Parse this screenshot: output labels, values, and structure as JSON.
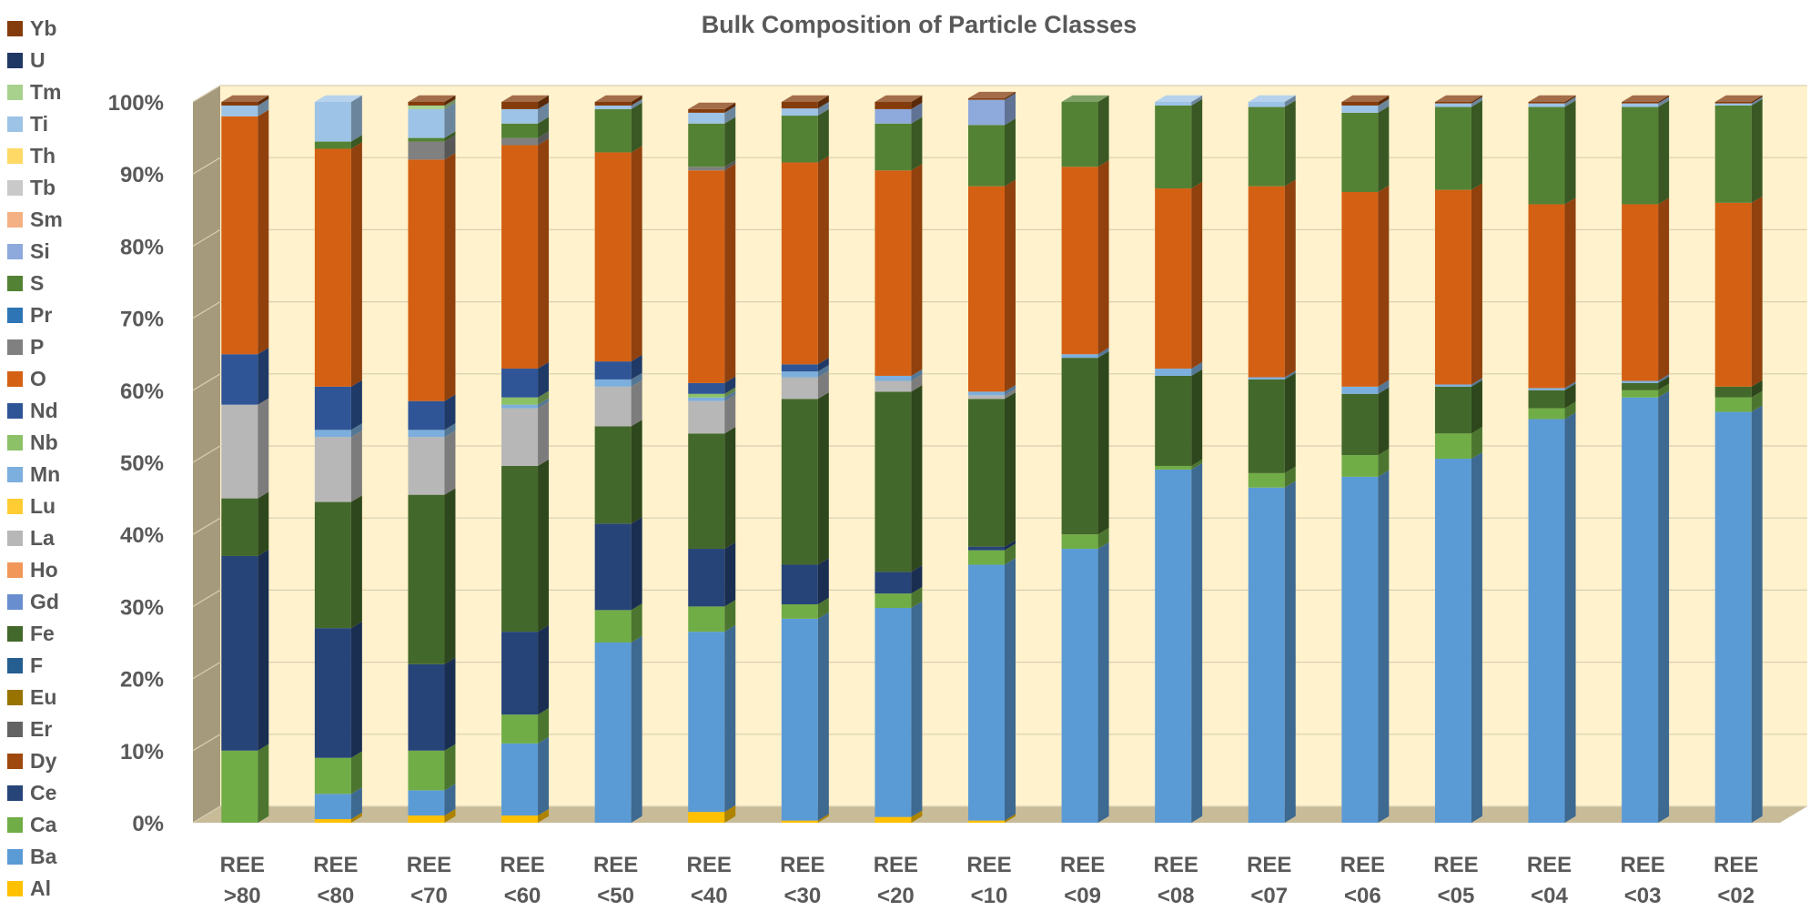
{
  "chart_data": {
    "type": "bar",
    "stacked": true,
    "three_d": true,
    "title": "Bulk Composition of Particle Classes",
    "xlabel": "",
    "ylabel": "",
    "ylim": [
      0,
      100
    ],
    "yticks": [
      "0%",
      "10%",
      "20%",
      "30%",
      "40%",
      "50%",
      "60%",
      "70%",
      "80%",
      "90%",
      "100%"
    ],
    "grid": true,
    "legend_position": "left",
    "categories": [
      [
        "REE",
        ">80"
      ],
      [
        "REE",
        "<80"
      ],
      [
        "REE",
        "<70"
      ],
      [
        "REE",
        "<60"
      ],
      [
        "REE",
        "<50"
      ],
      [
        "REE",
        "<40"
      ],
      [
        "REE",
        "<30"
      ],
      [
        "REE",
        "<20"
      ],
      [
        "REE",
        "<10"
      ],
      [
        "REE",
        "<09"
      ],
      [
        "REE",
        "<08"
      ],
      [
        "REE",
        "<07"
      ],
      [
        "REE",
        "<06"
      ],
      [
        "REE",
        "<05"
      ],
      [
        "REE",
        "<04"
      ],
      [
        "REE",
        "<03"
      ],
      [
        "REE",
        "<02"
      ]
    ],
    "series": [
      {
        "name": "Al",
        "color": "#FFC000",
        "values": [
          0,
          0.5,
          1,
          1,
          0,
          1.5,
          0.3,
          0.8,
          0.3,
          0,
          0,
          0,
          0,
          0,
          0,
          0,
          0
        ]
      },
      {
        "name": "Ba",
        "color": "#5B9BD5",
        "values": [
          0,
          3.5,
          3.5,
          10,
          25,
          25,
          28,
          29,
          35.5,
          38,
          49,
          46.5,
          48,
          50.5,
          56,
          59,
          57
        ]
      },
      {
        "name": "Ca",
        "color": "#70AD47",
        "values": [
          10,
          5,
          5.5,
          4,
          4.5,
          3.5,
          2,
          2,
          2,
          2,
          0.5,
          2,
          3,
          3.5,
          1.5,
          1,
          2
        ]
      },
      {
        "name": "Ce",
        "color": "#264478",
        "values": [
          27,
          18,
          12,
          11.5,
          12,
          8,
          5.5,
          3,
          0.5,
          0,
          0,
          0,
          0,
          0,
          0,
          0,
          0
        ]
      },
      {
        "name": "Dy",
        "color": "#9E480E",
        "values": [
          0,
          0,
          0,
          0,
          0,
          0,
          0,
          0,
          0,
          0,
          0,
          0,
          0,
          0,
          0,
          0,
          0
        ]
      },
      {
        "name": "Er",
        "color": "#636363",
        "values": [
          0,
          0,
          0,
          0,
          0,
          0,
          0,
          0,
          0,
          0,
          0,
          0,
          0,
          0,
          0,
          0,
          0
        ]
      },
      {
        "name": "Eu",
        "color": "#997300",
        "values": [
          0,
          0,
          0,
          0,
          0,
          0,
          0,
          0,
          0,
          0,
          0,
          0,
          0,
          0,
          0,
          0,
          0
        ]
      },
      {
        "name": "F",
        "color": "#255E91",
        "values": [
          0,
          0,
          0,
          0,
          0,
          0,
          0,
          0,
          0,
          0,
          0,
          0,
          0,
          0,
          0,
          0,
          0
        ]
      },
      {
        "name": "Fe",
        "color": "#43682B",
        "values": [
          8,
          17.5,
          23.5,
          23,
          13.5,
          16,
          23,
          25,
          20.5,
          24.5,
          12.5,
          13,
          8.5,
          6.5,
          2.5,
          1,
          1.5
        ]
      },
      {
        "name": "Gd",
        "color": "#698ED0",
        "values": [
          0,
          0,
          0,
          0,
          0,
          0,
          0,
          0,
          0,
          0,
          0,
          0,
          0,
          0,
          0,
          0,
          0
        ]
      },
      {
        "name": "Ho",
        "color": "#F1975A",
        "values": [
          0,
          0,
          0,
          0,
          0,
          0,
          0,
          0,
          0,
          0,
          0,
          0,
          0,
          0,
          0,
          0,
          0
        ]
      },
      {
        "name": "La",
        "color": "#B7B7B7",
        "values": [
          13,
          9,
          8,
          8,
          5.5,
          4.5,
          3,
          1.5,
          0.5,
          0,
          0,
          0,
          0,
          0,
          0,
          0,
          0
        ]
      },
      {
        "name": "Lu",
        "color": "#FFCD33",
        "values": [
          0,
          0,
          0,
          0,
          0,
          0,
          0,
          0,
          0,
          0,
          0,
          0,
          0,
          0,
          0,
          0,
          0
        ]
      },
      {
        "name": "Mn",
        "color": "#7CAFDD",
        "values": [
          0,
          1,
          1,
          0.5,
          1,
          0.5,
          0.8,
          0.7,
          0.5,
          0.5,
          1,
          0.3,
          1,
          0.3,
          0.3,
          0.3,
          0
        ]
      },
      {
        "name": "Nb",
        "color": "#8CC168",
        "values": [
          0,
          0,
          0,
          1,
          0,
          0.5,
          0,
          0,
          0,
          0,
          0,
          0,
          0,
          0,
          0,
          0,
          0
        ]
      },
      {
        "name": "Nd",
        "color": "#2F5597",
        "values": [
          7,
          6,
          4,
          4,
          2.5,
          1.5,
          1,
          0,
          0,
          0,
          0,
          0,
          0,
          0,
          0,
          0,
          0
        ]
      },
      {
        "name": "O",
        "color": "#D46014",
        "values": [
          33,
          33,
          33.5,
          31,
          29,
          29.5,
          28,
          28.5,
          28.5,
          26,
          25,
          26.5,
          27,
          27,
          25.5,
          24.5,
          25.5
        ]
      },
      {
        "name": "P",
        "color": "#808080",
        "values": [
          0,
          0,
          2.5,
          1,
          0,
          0.5,
          0,
          0,
          0,
          0,
          0,
          0,
          0,
          0,
          0,
          0,
          0
        ]
      },
      {
        "name": "Pr",
        "color": "#2E75B6",
        "values": [
          0,
          0,
          0,
          0,
          0,
          0,
          0,
          0,
          0,
          0,
          0,
          0,
          0,
          0,
          0,
          0,
          0
        ]
      },
      {
        "name": "S",
        "color": "#548235",
        "values": [
          0,
          1,
          0.5,
          2,
          6,
          6,
          6.5,
          6.5,
          8.5,
          9,
          11.5,
          11,
          11,
          11.5,
          13.5,
          13.5,
          13.5
        ]
      },
      {
        "name": "Si",
        "color": "#8EA9DB",
        "values": [
          0,
          0,
          0,
          0,
          0,
          0,
          0,
          2,
          3.5,
          0,
          0,
          0,
          0,
          0,
          0,
          0,
          0
        ]
      },
      {
        "name": "Sm",
        "color": "#F4B183",
        "values": [
          0,
          0,
          0,
          0,
          0,
          0,
          0,
          0,
          0,
          0,
          0,
          0,
          0,
          0,
          0,
          0,
          0
        ]
      },
      {
        "name": "Tb",
        "color": "#C9C9C9",
        "values": [
          0,
          0,
          0,
          0,
          0,
          0,
          0,
          0,
          0,
          0,
          0,
          0,
          0,
          0,
          0,
          0,
          0
        ]
      },
      {
        "name": "Th",
        "color": "#FFD966",
        "values": [
          0,
          0,
          0,
          0,
          0,
          0,
          0,
          0,
          0,
          0,
          0,
          0,
          0,
          0,
          0,
          0,
          0
        ]
      },
      {
        "name": "Ti",
        "color": "#9DC3E6",
        "values": [
          1.5,
          5.5,
          4,
          2,
          0.5,
          1.5,
          1,
          0,
          0,
          0,
          0.5,
          0.7,
          1,
          0.5,
          0.5,
          0.5,
          0.3
        ]
      },
      {
        "name": "Tm",
        "color": "#A9D18E",
        "values": [
          0,
          0,
          0.5,
          0,
          0,
          0,
          0,
          0,
          0,
          0,
          0,
          0,
          0,
          0,
          0,
          0,
          0
        ]
      },
      {
        "name": "U",
        "color": "#203864",
        "values": [
          0,
          0,
          0,
          0,
          0,
          0,
          0,
          0,
          0,
          0,
          0,
          0,
          0,
          0,
          0,
          0,
          0
        ]
      },
      {
        "name": "Yb",
        "color": "#843C0C",
        "values": [
          0.5,
          0,
          0.5,
          1,
          0.5,
          0.5,
          0.9,
          1,
          0.2,
          0,
          0,
          0,
          0.5,
          0.2,
          0.2,
          0.2,
          0.2
        ]
      }
    ]
  }
}
